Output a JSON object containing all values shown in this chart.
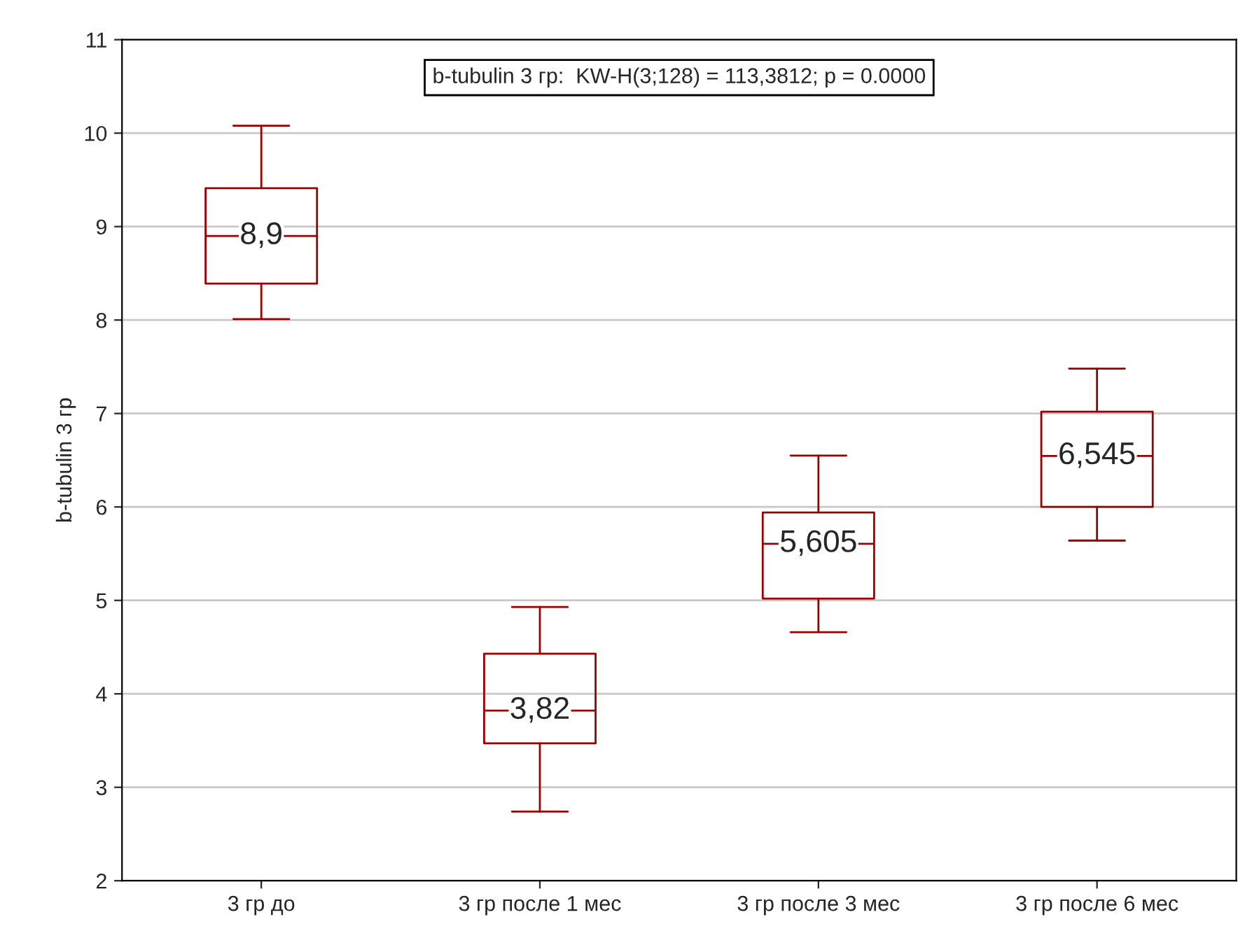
{
  "chart_data": {
    "type": "box",
    "ylabel": "b-tubulin 3 гр",
    "annotations": [
      "b-tubulin 3 гр:  KW-H(3;128) = 113,3812; p = 0.0000"
    ],
    "categories": [
      "3 гр до",
      "3 гр после 1 мес",
      "3 гр после 3 мес",
      "3 гр после 6 мес"
    ],
    "boxes": [
      {
        "low": 8.01,
        "q1": 8.39,
        "median": 8.9,
        "q3": 9.41,
        "high": 10.08
      },
      {
        "low": 2.74,
        "q1": 3.47,
        "median": 3.82,
        "q3": 4.43,
        "high": 4.93
      },
      {
        "low": 4.66,
        "q1": 5.02,
        "median": 5.605,
        "q3": 5.94,
        "high": 6.55
      },
      {
        "low": 5.64,
        "q1": 6.0,
        "median": 6.545,
        "q3": 7.02,
        "high": 7.48
      }
    ],
    "value_labels": [
      "8,9",
      "3,82",
      "5,605",
      "6,545"
    ],
    "color": "#990000",
    "ylim": [
      2,
      11
    ],
    "yticks": [
      2,
      3,
      4,
      5,
      6,
      7,
      8,
      9,
      10,
      11
    ],
    "grid": "y",
    "legend": false
  }
}
